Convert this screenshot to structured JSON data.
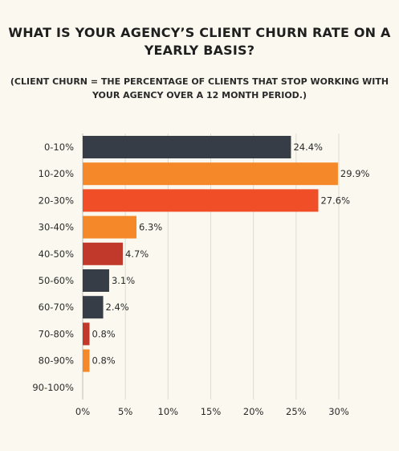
{
  "title_lines": [
    "WHAT IS YOUR AGENCY’S CLIENT CHURN RATE ON A",
    "YEARLY BASIS?"
  ],
  "subtitle_lines": [
    "(CLIENT CHURN = THE PERCENTAGE OF CLIENTS THAT STOP WORKING WITH",
    "YOUR AGENCY OVER A 12 MONTH PERIOD.)"
  ],
  "chart_data": {
    "type": "bar",
    "orientation": "horizontal",
    "title": "WHAT IS YOUR AGENCY’S CLIENT CHURN RATE ON A YEARLY BASIS?",
    "subtitle": "(CLIENT CHURN = THE PERCENTAGE OF CLIENTS THAT STOP WORKING WITH YOUR AGENCY OVER A 12 MONTH PERIOD.)",
    "categories": [
      "0-10%",
      "10-20%",
      "20-30%",
      "30-40%",
      "40-50%",
      "50-60%",
      "60-70%",
      "70-80%",
      "80-90%",
      "90-100%"
    ],
    "values": [
      24.4,
      29.9,
      27.6,
      6.3,
      4.7,
      3.1,
      2.4,
      0.8,
      0.8,
      0
    ],
    "value_labels": [
      "24.4%",
      "29.9%",
      "27.6%",
      "6.3%",
      "4.7%",
      "3.1%",
      "2.4%",
      "0.8%",
      "0.8%",
      ""
    ],
    "bar_colors": [
      "#363d47",
      "#f5892a",
      "#f04e26",
      "#f5892a",
      "#c0392b",
      "#363d47",
      "#363d47",
      "#c0392b",
      "#f5892a",
      "#363d47"
    ],
    "x_ticks": [
      0,
      5,
      10,
      15,
      20,
      25,
      30
    ],
    "x_tick_labels": [
      "0%",
      "5%",
      "10%",
      "15%",
      "20%",
      "25%",
      "30%"
    ],
    "xlim": [
      0,
      30
    ],
    "xlabel": "",
    "ylabel": "",
    "grid": "vertical",
    "legend": "none"
  }
}
